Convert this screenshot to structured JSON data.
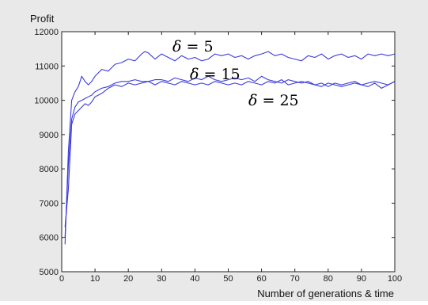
{
  "chart_data": {
    "type": "line",
    "ylabel": "Profit",
    "xlabel": "Number of generations & time",
    "xlim": [
      0,
      100
    ],
    "ylim": [
      5000,
      12000
    ],
    "xticks": [
      0,
      10,
      20,
      30,
      40,
      50,
      60,
      70,
      80,
      90,
      100
    ],
    "yticks": [
      5000,
      6000,
      7000,
      8000,
      9000,
      10000,
      11000,
      12000
    ],
    "grid": false,
    "line_color": "#3b3bdc",
    "annotations": [
      {
        "symbol": "δ",
        "rest": " = 5",
        "target_series": "δ = 5"
      },
      {
        "symbol": "δ",
        "rest": " = 15",
        "target_series": "δ = 15"
      },
      {
        "symbol": "δ",
        "rest": " = 25",
        "target_series": "δ = 25"
      }
    ],
    "series": [
      {
        "name": "δ = 5",
        "x": [
          1,
          2,
          3,
          4,
          5,
          6,
          7,
          8,
          9,
          10,
          12,
          14,
          16,
          18,
          20,
          22,
          24,
          25,
          26,
          28,
          30,
          32,
          34,
          36,
          38,
          40,
          42,
          44,
          46,
          48,
          50,
          52,
          54,
          56,
          58,
          60,
          62,
          64,
          66,
          68,
          70,
          72,
          74,
          76,
          78,
          80,
          82,
          84,
          86,
          88,
          90,
          92,
          94,
          96,
          98,
          100
        ],
        "y": [
          5800,
          8500,
          10000,
          10250,
          10400,
          10700,
          10550,
          10450,
          10550,
          10700,
          10900,
          10850,
          11050,
          11100,
          11200,
          11150,
          11350,
          11420,
          11380,
          11200,
          11350,
          11250,
          11150,
          11300,
          11200,
          11250,
          11150,
          11200,
          11350,
          11300,
          11350,
          11250,
          11300,
          11200,
          11300,
          11350,
          11420,
          11300,
          11350,
          11250,
          11200,
          11150,
          11300,
          11250,
          11350,
          11200,
          11300,
          11350,
          11250,
          11300,
          11200,
          11350,
          11300,
          11350,
          11300,
          11350
        ]
      },
      {
        "name": "δ = 15",
        "x": [
          1,
          2,
          3,
          4,
          5,
          6,
          7,
          8,
          9,
          10,
          12,
          14,
          16,
          18,
          20,
          22,
          24,
          26,
          28,
          30,
          32,
          34,
          36,
          38,
          40,
          42,
          44,
          46,
          48,
          50,
          52,
          54,
          56,
          58,
          60,
          62,
          64,
          66,
          68,
          70,
          72,
          74,
          76,
          78,
          80,
          82,
          84,
          86,
          88,
          90,
          92,
          94,
          96,
          98,
          100
        ],
        "y": [
          6000,
          8100,
          9450,
          9800,
          9950,
          10000,
          10050,
          10100,
          10150,
          10250,
          10350,
          10400,
          10500,
          10550,
          10550,
          10600,
          10550,
          10550,
          10600,
          10600,
          10550,
          10650,
          10600,
          10550,
          10650,
          10600,
          10700,
          10600,
          10550,
          10600,
          10650,
          10600,
          10650,
          10550,
          10700,
          10600,
          10550,
          10500,
          10600,
          10550,
          10500,
          10550,
          10450,
          10500,
          10400,
          10500,
          10450,
          10500,
          10550,
          10450,
          10500,
          10550,
          10500,
          10450,
          10550
        ]
      },
      {
        "name": "δ = 25",
        "x": [
          1,
          2,
          3,
          4,
          5,
          6,
          7,
          8,
          9,
          10,
          12,
          14,
          16,
          18,
          20,
          22,
          24,
          26,
          28,
          30,
          32,
          34,
          36,
          38,
          40,
          42,
          44,
          46,
          48,
          50,
          52,
          54,
          56,
          58,
          60,
          62,
          64,
          66,
          68,
          70,
          72,
          74,
          76,
          78,
          80,
          82,
          84,
          86,
          88,
          90,
          92,
          94,
          96,
          98,
          100
        ],
        "y": [
          6300,
          7400,
          9300,
          9600,
          9700,
          9800,
          9900,
          9850,
          9950,
          10100,
          10200,
          10350,
          10450,
          10400,
          10500,
          10450,
          10500,
          10550,
          10450,
          10550,
          10500,
          10450,
          10550,
          10500,
          10450,
          10500,
          10450,
          10550,
          10500,
          10450,
          10500,
          10450,
          10550,
          10500,
          10450,
          10550,
          10500,
          10600,
          10450,
          10500,
          10550,
          10500,
          10450,
          10400,
          10500,
          10450,
          10400,
          10450,
          10500,
          10450,
          10400,
          10500,
          10350,
          10450,
          10550
        ]
      }
    ]
  }
}
